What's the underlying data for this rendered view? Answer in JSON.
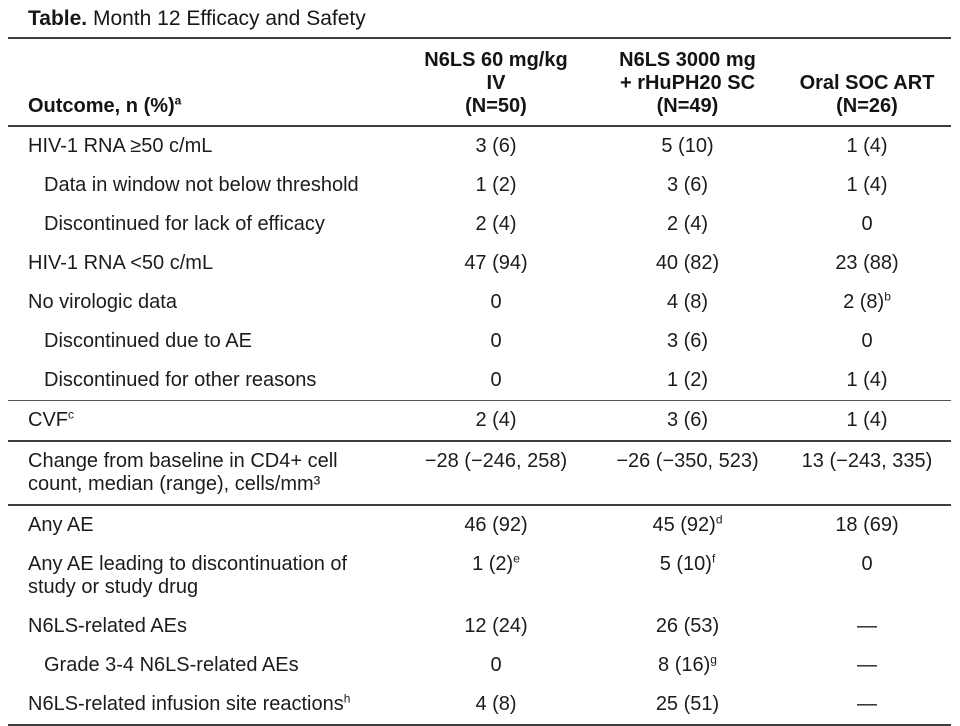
{
  "title": {
    "prefix": "Table.",
    "text": " Month 12 Efficacy and Safety"
  },
  "table": {
    "header": {
      "outcome_label": "Outcome, n (%)",
      "outcome_sup": "a",
      "col1": "N6LS 60 mg/kg\nIV\n(N=50)",
      "col2": "N6LS 3000 mg\n+ rHuPH20 SC\n(N=49)",
      "col3": "Oral SOC ART\n(N=26)"
    },
    "rows": [
      {
        "label": "HIV-1 RNA ≥50 c/mL",
        "sup": "",
        "v1": "3 (6)",
        "v1s": "",
        "v2": "5 (10)",
        "v2s": "",
        "v3": "1 (4)",
        "v3s": ""
      },
      {
        "label": "Data in window not below threshold",
        "sup": "",
        "v1": "1 (2)",
        "v1s": "",
        "v2": "3 (6)",
        "v2s": "",
        "v3": "1 (4)",
        "v3s": ""
      },
      {
        "label": "Discontinued for lack of efficacy",
        "sup": "",
        "v1": "2 (4)",
        "v1s": "",
        "v2": "2 (4)",
        "v2s": "",
        "v3": "0",
        "v3s": ""
      },
      {
        "label": "HIV-1 RNA <50 c/mL",
        "sup": "",
        "v1": "47 (94)",
        "v1s": "",
        "v2": "40 (82)",
        "v2s": "",
        "v3": "23 (88)",
        "v3s": ""
      },
      {
        "label": "No virologic data",
        "sup": "",
        "v1": "0",
        "v1s": "",
        "v2": "4 (8)",
        "v2s": "",
        "v3": "2 (8)",
        "v3s": "b"
      },
      {
        "label": "Discontinued due to AE",
        "sup": "",
        "v1": "0",
        "v1s": "",
        "v2": "3 (6)",
        "v2s": "",
        "v3": "0",
        "v3s": ""
      },
      {
        "label": "Discontinued for other reasons",
        "sup": "",
        "v1": "0",
        "v1s": "",
        "v2": "1 (2)",
        "v2s": "",
        "v3": "1 (4)",
        "v3s": ""
      },
      {
        "label": "CVF",
        "sup": "c",
        "v1": "2 (4)",
        "v1s": "",
        "v2": "3 (6)",
        "v2s": "",
        "v3": "1 (4)",
        "v3s": ""
      },
      {
        "label": "Change from baseline in CD4+ cell\ncount, median (range), cells/mm³",
        "sup": "",
        "v1": "−28 (−246, 258)",
        "v1s": "",
        "v2": "−26 (−350, 523)",
        "v2s": "",
        "v3": "13 (−243, 335)",
        "v3s": ""
      },
      {
        "label": "Any AE",
        "sup": "",
        "v1": "46 (92)",
        "v1s": "",
        "v2": "45 (92)",
        "v2s": "d",
        "v3": "18 (69)",
        "v3s": ""
      },
      {
        "label": "Any AE leading to discontinuation of\nstudy or study drug",
        "sup": "",
        "v1": "1 (2)",
        "v1s": "e",
        "v2": "5 (10)",
        "v2s": "f",
        "v3": "0",
        "v3s": ""
      },
      {
        "label": "N6LS-related AEs",
        "sup": "",
        "v1": "12 (24)",
        "v1s": "",
        "v2": "26 (53)",
        "v2s": "",
        "v3": "—",
        "v3s": ""
      },
      {
        "label": "Grade 3-4 N6LS-related AEs",
        "sup": "",
        "v1": "0",
        "v1s": "",
        "v2": "8 (16)",
        "v2s": "g",
        "v3": "—",
        "v3s": ""
      },
      {
        "label": "N6LS-related infusion site reactions",
        "sup": "h",
        "v1": "4 (8)",
        "v1s": "",
        "v2": "25 (51)",
        "v2s": "",
        "v3": "—",
        "v3s": ""
      }
    ]
  }
}
